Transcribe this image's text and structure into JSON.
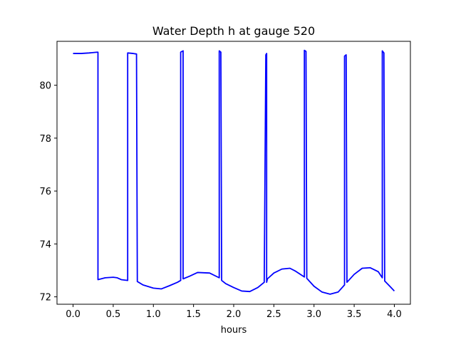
{
  "chart_data": {
    "type": "line",
    "title": "Water Depth h at gauge 520",
    "xlabel": "hours",
    "ylabel": "",
    "xlim": [
      -0.2,
      4.2
    ],
    "ylim": [
      71.72,
      81.66
    ],
    "xticks": [
      0.0,
      0.5,
      1.0,
      1.5,
      2.0,
      2.5,
      3.0,
      3.5,
      4.0
    ],
    "xtick_labels": [
      "0.0",
      "0.5",
      "1.0",
      "1.5",
      "2.0",
      "2.5",
      "3.0",
      "3.5",
      "4.0"
    ],
    "yticks": [
      72,
      74,
      76,
      78,
      80
    ],
    "ytick_labels": [
      "72",
      "74",
      "76",
      "78",
      "80"
    ],
    "grid": false,
    "series": [
      {
        "color": "#0000ff",
        "x": [
          0.0,
          0.1,
          0.2,
          0.3,
          0.31,
          0.31,
          0.4,
          0.5,
          0.55,
          0.6,
          0.68,
          0.68,
          0.75,
          0.79,
          0.8,
          0.87,
          1.0,
          1.1,
          1.2,
          1.3,
          1.34,
          1.34,
          1.37,
          1.37,
          1.45,
          1.55,
          1.7,
          1.82,
          1.82,
          1.84,
          1.85,
          1.9,
          2.0,
          2.1,
          2.2,
          2.3,
          2.38,
          2.4,
          2.41,
          2.41,
          2.42,
          2.5,
          2.6,
          2.7,
          2.77,
          2.88,
          2.88,
          2.9,
          2.91,
          3.0,
          3.1,
          3.2,
          3.3,
          3.38,
          3.38,
          3.4,
          3.41,
          3.5,
          3.6,
          3.7,
          3.8,
          3.85,
          3.85,
          3.87,
          3.88,
          3.95,
          4.0
        ],
        "y": [
          81.2,
          81.2,
          81.22,
          81.25,
          81.25,
          72.65,
          72.72,
          72.74,
          72.72,
          72.65,
          72.62,
          81.22,
          81.2,
          81.18,
          72.58,
          72.45,
          72.33,
          72.3,
          72.42,
          72.55,
          72.62,
          81.25,
          81.3,
          72.68,
          72.78,
          72.92,
          72.9,
          72.72,
          81.3,
          81.25,
          72.62,
          72.5,
          72.35,
          72.22,
          72.2,
          72.35,
          72.55,
          81.15,
          81.2,
          72.55,
          72.68,
          72.9,
          73.05,
          73.08,
          72.97,
          72.75,
          81.32,
          81.28,
          72.7,
          72.4,
          72.18,
          72.1,
          72.18,
          72.45,
          81.1,
          81.15,
          72.55,
          72.85,
          73.08,
          73.1,
          72.95,
          72.72,
          81.3,
          81.22,
          72.6,
          72.38,
          72.22
        ]
      }
    ]
  }
}
